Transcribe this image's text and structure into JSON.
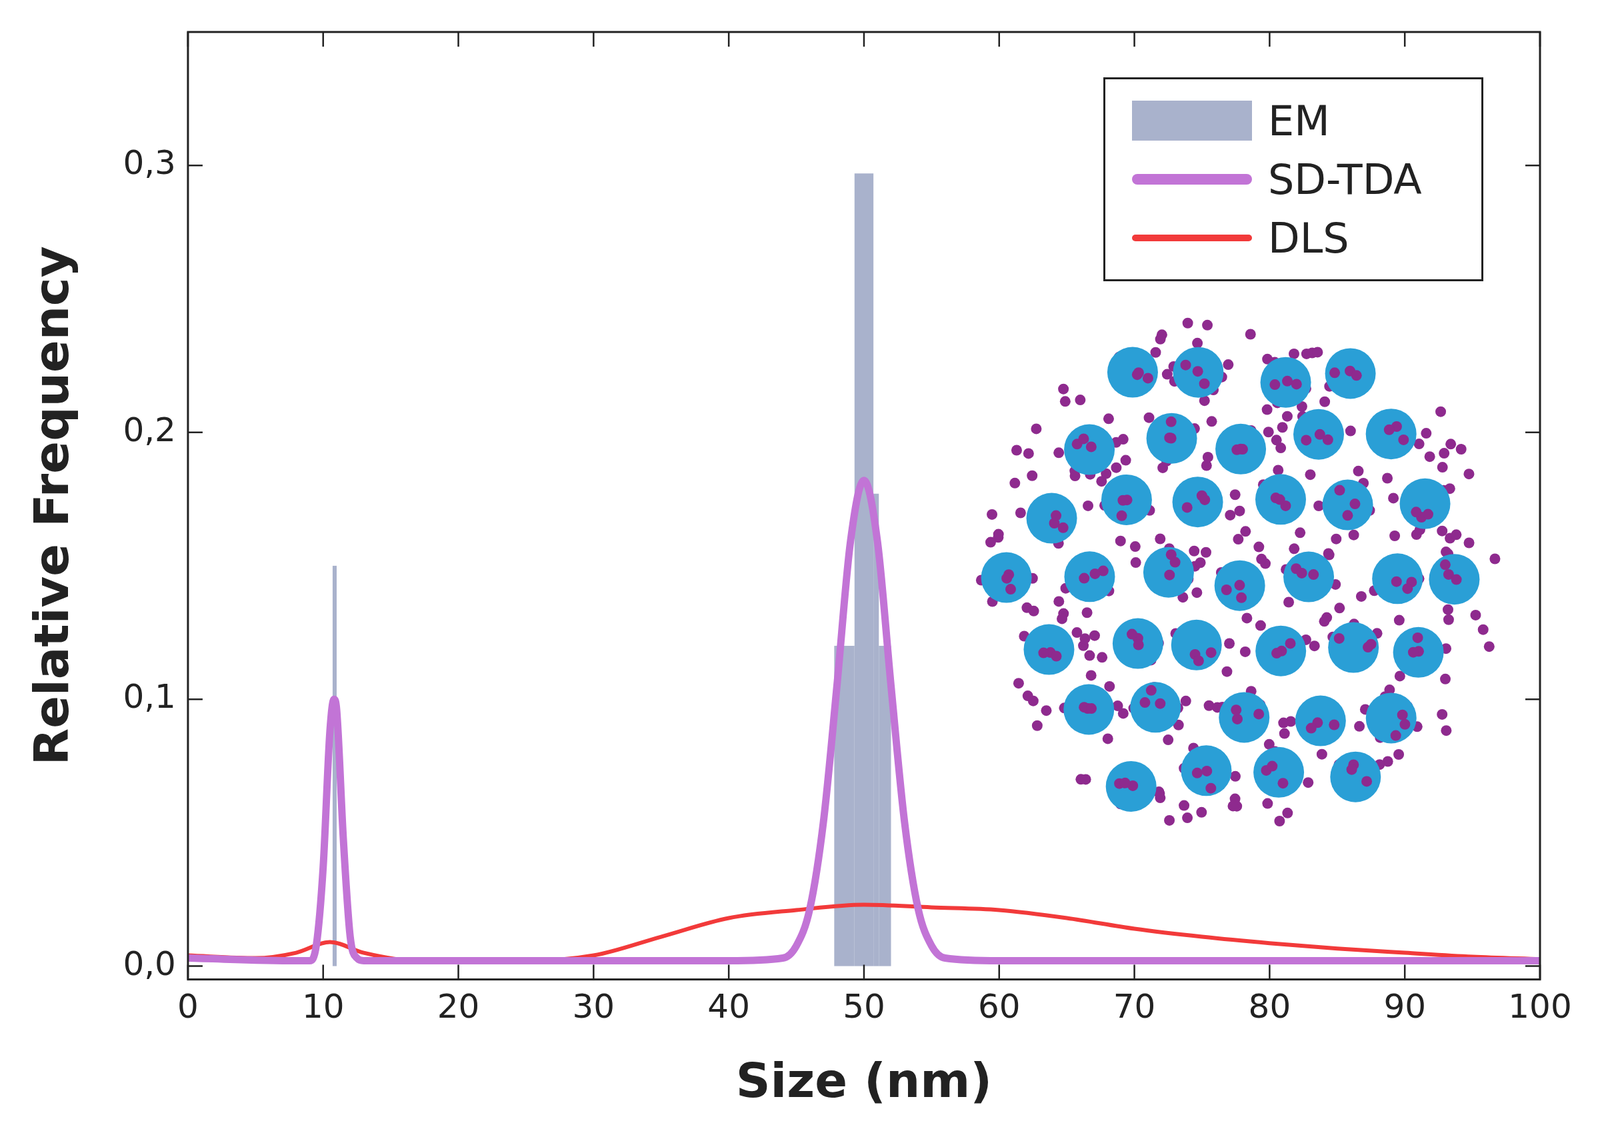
{
  "chart_data": {
    "type": "line",
    "x_label": "Size (nm)",
    "y_label": "Relative Frequency",
    "xlim": [
      0,
      100
    ],
    "xticks": [
      0,
      10,
      20,
      30,
      40,
      50,
      60,
      70,
      80,
      90,
      100
    ],
    "ylim": [
      -0.005,
      0.35
    ],
    "yticks": [
      {
        "value": 0,
        "label": "0,0"
      },
      {
        "value": 0.1,
        "label": "0,1"
      },
      {
        "value": 0.2,
        "label": "0,2"
      },
      {
        "value": 0.3,
        "label": "0,3"
      }
    ],
    "grid": false,
    "legend": "upper right",
    "series": [
      {
        "name": "EM",
        "type": "histogram",
        "color": "#a9b2cc",
        "bins": [
          10.7,
          11.0,
          47.8,
          49.3,
          50.7,
          51.1,
          52.0
        ],
        "values": [
          0.15,
          0,
          0.12,
          0.297,
          0.177,
          0.12
        ]
      },
      {
        "name": "SD-TDA",
        "type": "line",
        "color": "#c274d6",
        "x": [
          0,
          8,
          9,
          9.5,
          10,
          10.5,
          10.8,
          11,
          11.5,
          12,
          12.5,
          13,
          20,
          40,
          44,
          45,
          46,
          47,
          48,
          49,
          50,
          51,
          52,
          53,
          54,
          55,
          56,
          60,
          100
        ],
        "values": [
          0.003,
          0.002,
          0.002,
          0.008,
          0.037,
          0.088,
          0.1,
          0.096,
          0.047,
          0.011,
          0.003,
          0.002,
          0.002,
          0.002,
          0.003,
          0.0076,
          0.0216,
          0.054,
          0.105,
          0.159,
          0.182,
          0.159,
          0.105,
          0.054,
          0.0216,
          0.0076,
          0.003,
          0.002,
          0.002
        ]
      },
      {
        "name": "DLS",
        "type": "line",
        "color": "#f23a3a",
        "x": [
          0,
          5,
          8,
          10.5,
          13,
          17,
          25,
          30,
          35,
          40,
          45,
          50,
          55,
          60,
          65,
          70,
          75,
          80,
          85,
          90,
          95,
          100
        ],
        "values": [
          0.004,
          0.003,
          0.005,
          0.009,
          0.005,
          0.002,
          0.002,
          0.004,
          0.011,
          0.018,
          0.021,
          0.023,
          0.022,
          0.021,
          0.018,
          0.014,
          0.011,
          0.0086,
          0.0066,
          0.005,
          0.0035,
          0.0026
        ]
      }
    ]
  }
}
